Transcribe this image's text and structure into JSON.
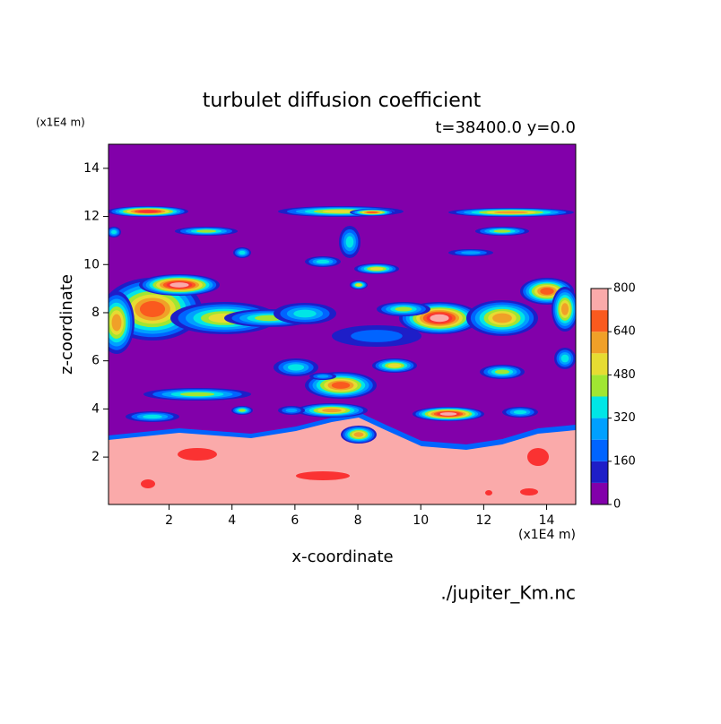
{
  "chart_data": {
    "type": "contour",
    "title": "turbulet diffusion coefficient",
    "subtitle": "t=38400.0 y=0.0",
    "y_unit_label": "(x1E4 m)",
    "x_unit_label": "(x1E4 m)",
    "x_label": "x-coordinate",
    "y_label": "z-coordinate",
    "source": "./jupiter_Km.nc",
    "xlim": [
      0.075,
      14.925
    ],
    "ylim": [
      0.03,
      15
    ],
    "xticks": [
      2,
      4,
      6,
      8,
      10,
      12,
      14
    ],
    "yticks": [
      2,
      4,
      6,
      8,
      10,
      12,
      14
    ],
    "colorbar": {
      "levels": [
        0,
        80,
        160,
        240,
        320,
        400,
        480,
        560,
        640,
        720,
        800
      ],
      "colors": [
        "#8200aa",
        "#1e1ec8",
        "#0064ff",
        "#00a0ff",
        "#00e6e6",
        "#a0e632",
        "#e6dc32",
        "#f0a028",
        "#fa5a1e",
        "#fa3232",
        "#faaaaa"
      ],
      "ticks": [
        0,
        160,
        320,
        480,
        640,
        800
      ]
    }
  }
}
